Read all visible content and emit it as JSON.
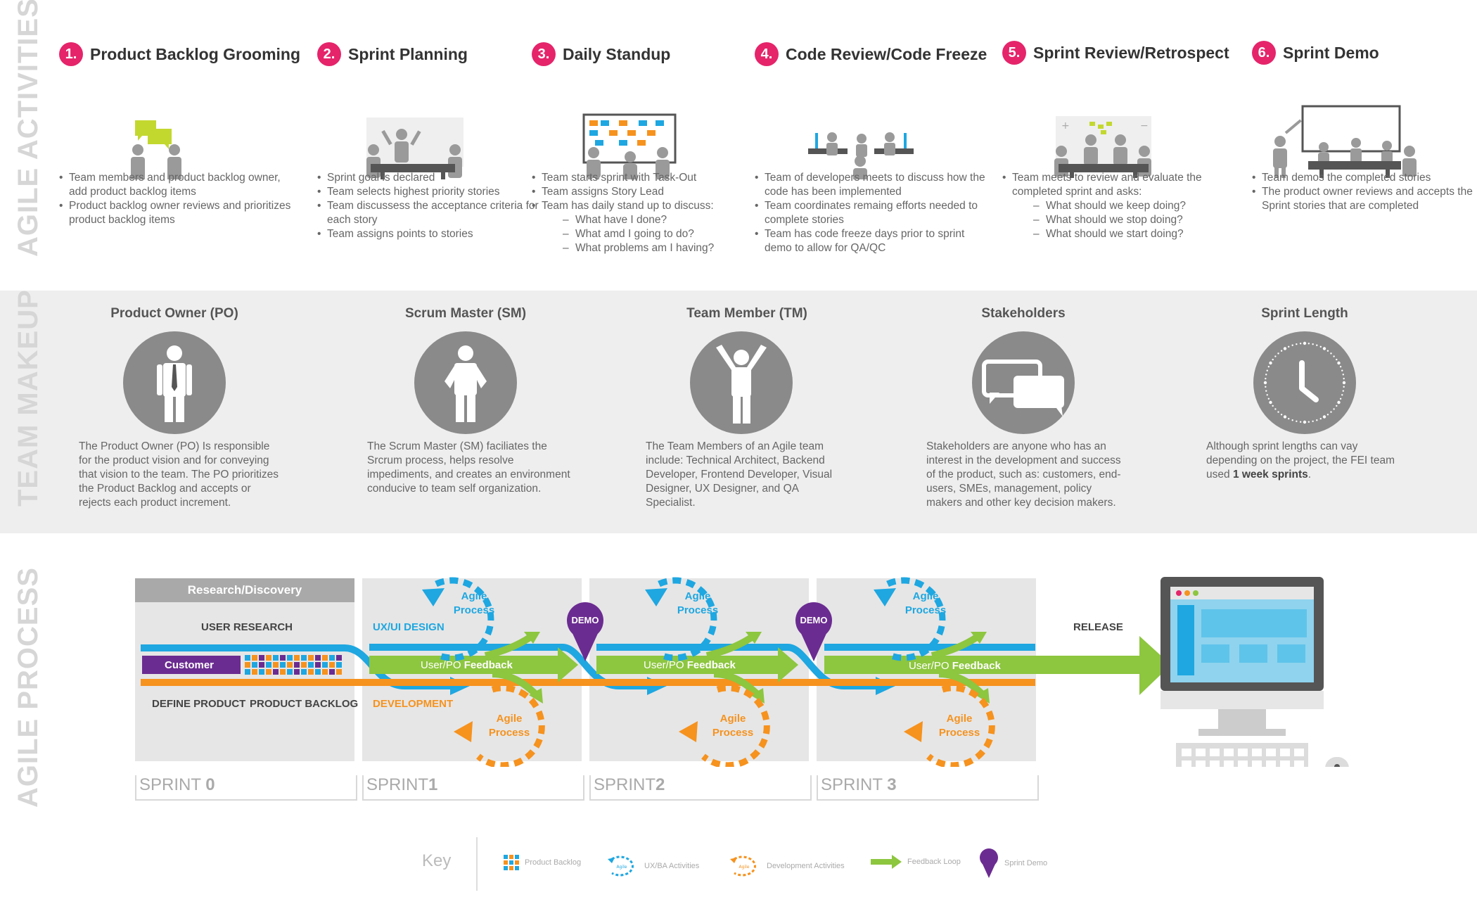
{
  "sections": {
    "activities": "AGILE ACTIVITIES",
    "team": "TEAM MAKEUP",
    "process": "AGILE PROCESS"
  },
  "activities": [
    {
      "num": "1.",
      "title": "Product Backlog Grooming",
      "bullets": [
        "Team members and product backlog owner, add product backlog items",
        "Product backlog owner reviews and prioritizes product backlog items"
      ]
    },
    {
      "num": "2.",
      "title": "Sprint Planning",
      "bullets": [
        "Sprint goal is declared",
        "Team selects highest priority stories",
        "Team discussess the acceptance criteria for each story",
        "Team assigns points to stories"
      ]
    },
    {
      "num": "3.",
      "title": "Daily Standup",
      "bullets": [
        "Team starts sprint with Task-Out",
        "Team assigns Story Lead",
        "Team has daily stand up to discuss:"
      ],
      "sub": [
        "What have I done?",
        "What amd I going to do?",
        "What problems am I having?"
      ]
    },
    {
      "num": "4.",
      "title": "Code Review/Code Freeze",
      "bullets": [
        "Team of developers meets to discuss how the code has been implemented",
        "Team coordinates remaing efforts needed to complete stories",
        "Team has code freeze days prior to sprint demo to allow for QA/QC"
      ]
    },
    {
      "num": "5.",
      "title": "Sprint Review/Retrospect",
      "bullets": [
        "Team meets to review and evaluate the completed sprint and asks:"
      ],
      "sub": [
        "What should we keep doing?",
        "What should we stop doing?",
        "What should we start doing?"
      ]
    },
    {
      "num": "6.",
      "title": "Sprint Demo",
      "bullets": [
        "Team demos the completed stories",
        "The product owner reviews and accepts the Sprint stories that are completed"
      ]
    }
  ],
  "roles": [
    {
      "title": "Product Owner (PO)",
      "desc": "The Product Owner (PO) Is responsible for the product vision and for conveying that vision to the team. The PO prioritizes the Product Backlog and accepts or rejects each product increment."
    },
    {
      "title": "Scrum Master (SM)",
      "desc": "The Scrum Master (SM) faciliates the Srcrum process, helps resolve impediments, and creates an environment conducive to team self organization."
    },
    {
      "title": "Team Member (TM)",
      "desc": "The Team Members of an Agile team include: Technical Architect, Backend Developer, Frontend Developer, Visual Designer, UX Designer, and QA Specialist."
    },
    {
      "title": "Stakeholders",
      "desc": "Stakeholders are anyone who has an interest in the development and success of the product, such as: customers, end-users, SMEs, management, policy makers and other key decision makers."
    },
    {
      "title": "Sprint Length",
      "desc": "Although sprint lengths can vay depending on the project, the FEI team used",
      "desc_bold": "1 week sprints",
      "desc_end": "."
    }
  ],
  "process": {
    "research": "Research/Discovery",
    "user_research": "USER RESEARCH",
    "customer": "Customer",
    "define_product": "DEFINE PRODUCT",
    "product_backlog": "PRODUCT BACKLOG",
    "ux_design": "UX/UI DESIGN",
    "development": "DEVELOPMENT",
    "agile_process": "Agile Process",
    "feedback_prefix": "User/PO",
    "feedback_word": "Feedback",
    "demo": "DEMO",
    "release": "RELEASE",
    "sprints": [
      {
        "label": "SPRINT",
        "num": "0"
      },
      {
        "label": "SPRINT",
        "num": "1"
      },
      {
        "label": "SPRINT",
        "num": "2"
      },
      {
        "label": "SPRINT",
        "num": "3"
      }
    ]
  },
  "key": {
    "title": "Key",
    "items": [
      "Product Backlog",
      "UX/BA Activities",
      "Development Activities",
      "Feedback Loop",
      "Sprint Demo"
    ]
  },
  "colors": {
    "pink": "#e5246a",
    "blue": "#1ea7e1",
    "orange": "#f6921e",
    "green": "#8dc63f",
    "purple": "#6b2c91",
    "gray": "#8a8a8a"
  }
}
